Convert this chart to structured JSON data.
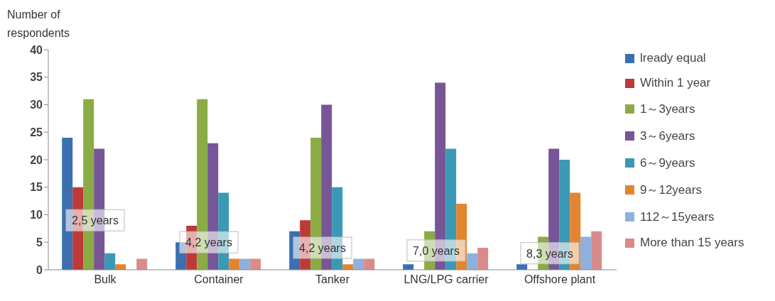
{
  "chart_data": {
    "type": "bar",
    "ylabel": "Number of respondents",
    "categories": [
      "Bulk",
      "Container",
      "Tanker",
      "LNG/LPG carrier",
      "Offshore plant"
    ],
    "series": [
      {
        "name": "lready equal",
        "color": "#3b6fb2",
        "values": [
          24,
          5,
          7,
          1,
          1
        ]
      },
      {
        "name": "Within 1 year",
        "color": "#bd3a38",
        "values": [
          15,
          8,
          9,
          0,
          0
        ]
      },
      {
        "name": "1～3years",
        "color": "#8aab45",
        "values": [
          31,
          31,
          24,
          7,
          6
        ]
      },
      {
        "name": "3～6years",
        "color": "#765697",
        "values": [
          22,
          23,
          30,
          34,
          22
        ]
      },
      {
        "name": "6～9years",
        "color": "#3a99b4",
        "values": [
          3,
          14,
          15,
          22,
          20
        ]
      },
      {
        "name": "9～12years",
        "color": "#e3852f",
        "values": [
          1,
          2,
          1,
          12,
          14
        ]
      },
      {
        "name": "112～15years",
        "color": "#8db0df",
        "values": [
          0,
          2,
          2,
          3,
          6
        ]
      },
      {
        "name": "More than 15 years",
        "color": "#d98b8c",
        "values": [
          2,
          2,
          2,
          4,
          7
        ]
      }
    ],
    "ylim": [
      0,
      40
    ],
    "yticks": [
      0,
      5,
      10,
      15,
      20,
      25,
      30,
      35,
      40
    ],
    "grid": false,
    "legend": "right",
    "annotations": [
      {
        "text": "2,5 years",
        "x": "Bulk",
        "y": 9
      },
      {
        "text": "4,2 years",
        "x": "Container",
        "y": 5
      },
      {
        "text": "4,2 years",
        "x": "Tanker",
        "y": 4
      },
      {
        "text": "7,0 years",
        "x": "LNG/LPG carrier",
        "y": 3.5
      },
      {
        "text": "8,3 years",
        "x": "Offshore plant",
        "y": 3
      }
    ]
  }
}
